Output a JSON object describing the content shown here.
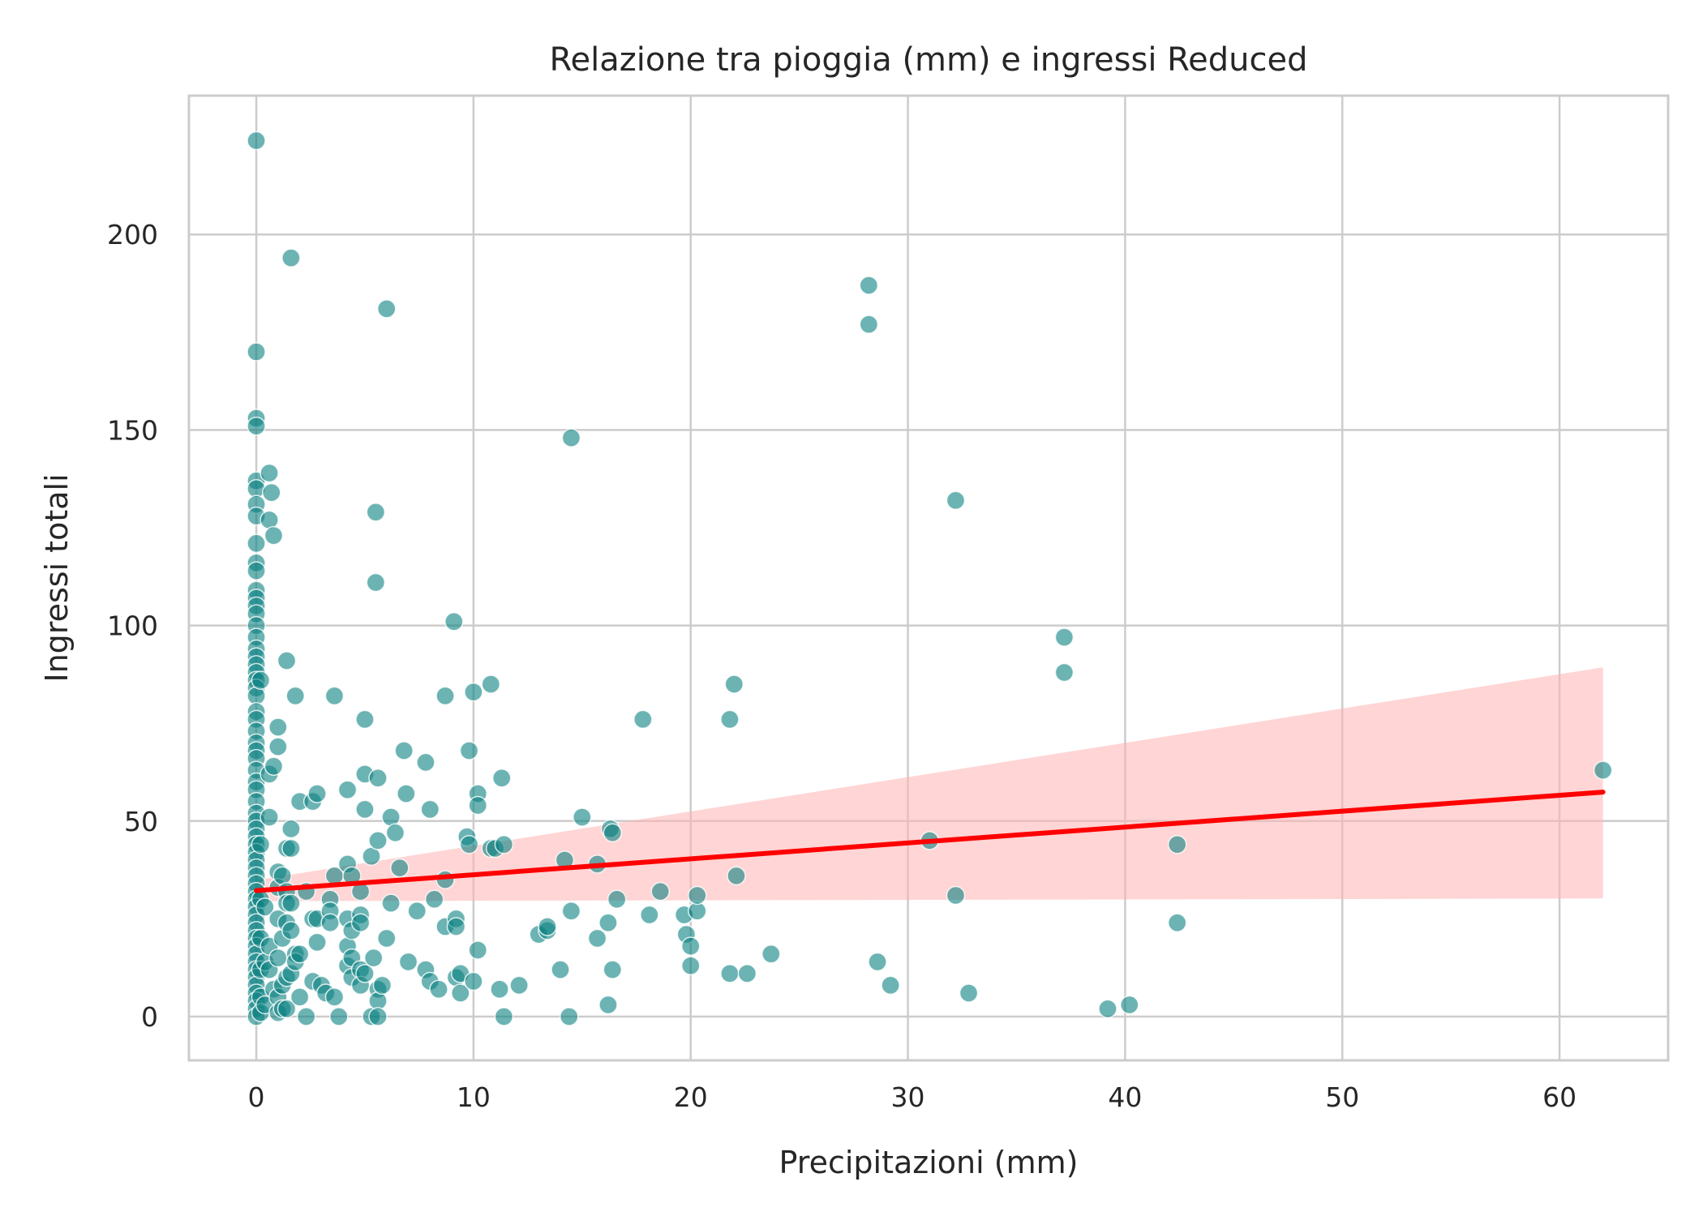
{
  "chart_data": {
    "type": "scatter",
    "title": "Relazione tra pioggia (mm) e ingressi Reduced",
    "xlabel": "Precipitazioni (mm)",
    "ylabel": "Ingressi totali",
    "xlim": [
      -3.1,
      65
    ],
    "ylim": [
      -11.2,
      235.5
    ],
    "xticks": [
      0,
      10,
      20,
      30,
      40,
      50,
      60
    ],
    "yticks": [
      0,
      50,
      100,
      150,
      200
    ],
    "grid": true,
    "legend": "none",
    "colors": {
      "points": "#0a8080",
      "regression": "#ff0000",
      "ci_band": "#ffb3b3",
      "grid": "#cccccc",
      "frame": "#cccccc"
    },
    "regression": {
      "x": [
        0,
        62
      ],
      "y": [
        32.2,
        57.4
      ],
      "ci_lower": [
        29.5,
        30.2
      ],
      "ci_upper": [
        34.9,
        89.3
      ]
    },
    "points": [
      [
        0,
        224
      ],
      [
        0,
        170
      ],
      [
        0,
        153
      ],
      [
        0,
        151
      ],
      [
        0,
        137
      ],
      [
        0,
        135
      ],
      [
        0,
        131
      ],
      [
        0,
        128
      ],
      [
        0,
        121
      ],
      [
        0,
        116
      ],
      [
        0,
        114
      ],
      [
        0,
        109
      ],
      [
        0,
        107
      ],
      [
        0,
        105
      ],
      [
        0,
        103
      ],
      [
        0,
        100
      ],
      [
        0,
        97
      ],
      [
        0,
        94
      ],
      [
        0,
        92
      ],
      [
        0,
        90
      ],
      [
        0,
        88
      ],
      [
        0,
        86
      ],
      [
        0,
        84
      ],
      [
        0,
        82
      ],
      [
        0,
        78
      ],
      [
        0,
        76
      ],
      [
        0,
        73
      ],
      [
        0,
        70
      ],
      [
        0,
        68
      ],
      [
        0,
        66
      ],
      [
        0,
        63
      ],
      [
        0,
        60
      ],
      [
        0,
        58
      ],
      [
        0,
        55
      ],
      [
        0,
        52
      ],
      [
        0,
        50
      ],
      [
        0,
        48
      ],
      [
        0,
        46
      ],
      [
        0,
        44
      ],
      [
        0,
        42
      ],
      [
        0,
        40
      ],
      [
        0,
        38
      ],
      [
        0,
        36
      ],
      [
        0,
        34
      ],
      [
        0,
        32
      ],
      [
        0,
        30
      ],
      [
        0,
        28
      ],
      [
        0,
        26
      ],
      [
        0,
        24
      ],
      [
        0,
        22
      ],
      [
        0,
        20
      ],
      [
        0,
        18
      ],
      [
        0,
        16
      ],
      [
        0,
        14
      ],
      [
        0,
        12
      ],
      [
        0,
        10
      ],
      [
        0,
        8
      ],
      [
        0,
        6
      ],
      [
        0,
        4
      ],
      [
        0,
        2
      ],
      [
        0,
        0
      ],
      [
        0.2,
        86
      ],
      [
        0.2,
        44
      ],
      [
        0.2,
        30
      ],
      [
        0.2,
        20
      ],
      [
        0.2,
        12
      ],
      [
        0.2,
        5
      ],
      [
        0.2,
        1
      ],
      [
        0.4,
        28
      ],
      [
        0.4,
        14
      ],
      [
        0.4,
        3
      ],
      [
        0.6,
        139
      ],
      [
        0.6,
        127
      ],
      [
        0.6,
        62
      ],
      [
        0.6,
        51
      ],
      [
        0.6,
        18
      ],
      [
        0.6,
        12
      ],
      [
        0.7,
        134
      ],
      [
        0.8,
        123
      ],
      [
        0.8,
        64
      ],
      [
        0.8,
        7
      ],
      [
        1,
        74
      ],
      [
        1,
        69
      ],
      [
        1,
        37
      ],
      [
        1,
        33
      ],
      [
        1,
        25
      ],
      [
        1,
        15
      ],
      [
        1,
        5
      ],
      [
        1,
        1
      ],
      [
        1.2,
        36
      ],
      [
        1.2,
        20
      ],
      [
        1.2,
        8
      ],
      [
        1.2,
        2
      ],
      [
        1.4,
        91
      ],
      [
        1.4,
        43
      ],
      [
        1.4,
        32
      ],
      [
        1.4,
        29
      ],
      [
        1.4,
        24
      ],
      [
        1.4,
        10
      ],
      [
        1.4,
        2
      ],
      [
        1.6,
        194
      ],
      [
        1.6,
        48
      ],
      [
        1.6,
        43
      ],
      [
        1.6,
        29
      ],
      [
        1.6,
        22
      ],
      [
        1.6,
        11
      ],
      [
        1.8,
        82
      ],
      [
        1.8,
        16
      ],
      [
        1.8,
        14
      ],
      [
        2,
        55
      ],
      [
        2,
        16
      ],
      [
        2,
        5
      ],
      [
        2.3,
        32
      ],
      [
        2.3,
        0
      ],
      [
        2.6,
        55
      ],
      [
        2.6,
        25
      ],
      [
        2.6,
        9
      ],
      [
        2.8,
        57
      ],
      [
        2.8,
        25
      ],
      [
        2.8,
        19
      ],
      [
        3,
        8
      ],
      [
        3.2,
        6
      ],
      [
        3.4,
        30
      ],
      [
        3.4,
        27
      ],
      [
        3.4,
        24
      ],
      [
        3.6,
        82
      ],
      [
        3.6,
        36
      ],
      [
        3.6,
        5
      ],
      [
        3.8,
        0
      ],
      [
        4.2,
        58
      ],
      [
        4.2,
        39
      ],
      [
        4.2,
        25
      ],
      [
        4.2,
        18
      ],
      [
        4.2,
        13
      ],
      [
        4.4,
        36
      ],
      [
        4.4,
        22
      ],
      [
        4.4,
        15
      ],
      [
        4.4,
        10
      ],
      [
        4.8,
        32
      ],
      [
        4.8,
        26
      ],
      [
        4.8,
        24
      ],
      [
        4.8,
        12
      ],
      [
        4.8,
        8
      ],
      [
        5,
        76
      ],
      [
        5,
        62
      ],
      [
        5,
        53
      ],
      [
        5,
        11
      ],
      [
        5.3,
        41
      ],
      [
        5.3,
        0
      ],
      [
        5.4,
        15
      ],
      [
        5.5,
        129
      ],
      [
        5.5,
        111
      ],
      [
        5.6,
        61
      ],
      [
        5.6,
        45
      ],
      [
        5.6,
        7
      ],
      [
        5.6,
        4
      ],
      [
        5.6,
        0
      ],
      [
        5.8,
        8
      ],
      [
        6,
        181
      ],
      [
        6,
        20
      ],
      [
        6.2,
        51
      ],
      [
        6.2,
        29
      ],
      [
        6.4,
        47
      ],
      [
        6.6,
        38
      ],
      [
        6.8,
        68
      ],
      [
        6.9,
        57
      ],
      [
        7,
        14
      ],
      [
        7.4,
        27
      ],
      [
        7.8,
        65
      ],
      [
        7.8,
        12
      ],
      [
        8,
        53
      ],
      [
        8,
        9
      ],
      [
        8.2,
        30
      ],
      [
        8.4,
        7
      ],
      [
        8.7,
        82
      ],
      [
        8.7,
        35
      ],
      [
        8.7,
        23
      ],
      [
        9.1,
        101
      ],
      [
        9.2,
        25
      ],
      [
        9.2,
        23
      ],
      [
        9.2,
        10
      ],
      [
        9.4,
        11
      ],
      [
        9.4,
        6
      ],
      [
        9.7,
        46
      ],
      [
        9.8,
        68
      ],
      [
        9.8,
        44
      ],
      [
        10,
        83
      ],
      [
        10,
        9
      ],
      [
        10.2,
        57
      ],
      [
        10.2,
        54
      ],
      [
        10.2,
        17
      ],
      [
        10.8,
        85
      ],
      [
        10.8,
        43
      ],
      [
        11,
        43
      ],
      [
        11.2,
        7
      ],
      [
        11.3,
        61
      ],
      [
        11.4,
        44
      ],
      [
        11.4,
        0
      ],
      [
        12.1,
        8
      ],
      [
        13,
        21
      ],
      [
        13.4,
        22
      ],
      [
        13.4,
        23
      ],
      [
        14,
        12
      ],
      [
        14.2,
        40
      ],
      [
        14.4,
        0
      ],
      [
        14.5,
        148
      ],
      [
        14.5,
        27
      ],
      [
        15,
        51
      ],
      [
        15.7,
        39
      ],
      [
        15.7,
        20
      ],
      [
        16.2,
        24
      ],
      [
        16.2,
        3
      ],
      [
        16.3,
        48
      ],
      [
        16.4,
        47
      ],
      [
        16.4,
        12
      ],
      [
        16.6,
        30
      ],
      [
        17.8,
        76
      ],
      [
        18.1,
        26
      ],
      [
        18.6,
        32
      ],
      [
        19.7,
        26
      ],
      [
        19.8,
        21
      ],
      [
        20,
        18
      ],
      [
        20,
        13
      ],
      [
        20.3,
        27
      ],
      [
        20.3,
        31
      ],
      [
        21.8,
        76
      ],
      [
        21.8,
        11
      ],
      [
        22,
        85
      ],
      [
        22.1,
        36
      ],
      [
        22.6,
        11
      ],
      [
        23.7,
        16
      ],
      [
        28.2,
        187
      ],
      [
        28.2,
        177
      ],
      [
        28.6,
        14
      ],
      [
        29.2,
        8
      ],
      [
        31,
        45
      ],
      [
        32.2,
        132
      ],
      [
        32.2,
        31
      ],
      [
        32.8,
        6
      ],
      [
        37.2,
        97
      ],
      [
        37.2,
        88
      ],
      [
        39.2,
        2
      ],
      [
        40.2,
        3
      ],
      [
        42.4,
        44
      ],
      [
        42.4,
        24
      ],
      [
        62,
        63
      ]
    ]
  }
}
